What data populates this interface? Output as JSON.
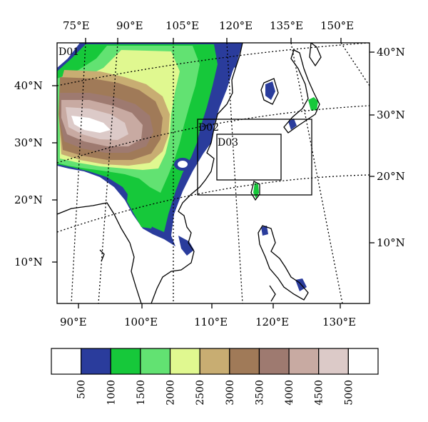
{
  "map": {
    "top_lon_labels": [
      "75°E",
      "90°E",
      "105°E",
      "120°E",
      "135°E",
      "150°E"
    ],
    "bottom_lon_labels": [
      "90°E",
      "100°E",
      "110°E",
      "120°E",
      "130°E"
    ],
    "left_lat_labels": [
      "40°N",
      "30°N",
      "20°N",
      "10°N"
    ],
    "right_lat_labels": [
      "40°N",
      "30°N",
      "20°N",
      "10°N"
    ],
    "domains": [
      {
        "label": "D01"
      },
      {
        "label": "D02"
      },
      {
        "label": "D03"
      }
    ]
  },
  "colorbar": {
    "ticks": [
      "500",
      "1000",
      "1500",
      "2000",
      "2500",
      "3000",
      "3500",
      "4000",
      "4500",
      "5000"
    ],
    "colors": [
      "#ffffff",
      "#2a3c9c",
      "#16c83a",
      "#62e272",
      "#e0f890",
      "#c8ad72",
      "#a07a58",
      "#9e7a70",
      "#c8aaa2",
      "#dccac8",
      "#ffffff"
    ]
  },
  "terrain_colors": {
    "ocean": "#ffffff",
    "band_1000": "#2a3c9c",
    "band_1500": "#16c83a",
    "band_2000": "#62e272",
    "band_2500": "#e0f890",
    "band_3000": "#c8ad72",
    "band_3500": "#a07a58",
    "band_4000": "#9e7a70",
    "band_4500": "#c8aaa2",
    "band_5000": "#dccac8"
  }
}
